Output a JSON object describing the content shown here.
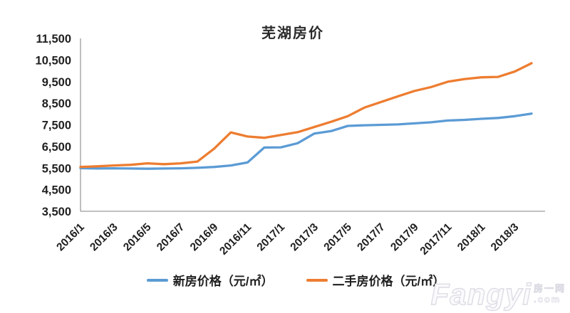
{
  "title": "芜湖房价",
  "legend": [
    {
      "label": "新房价格（元/㎡）",
      "color": "#5B9BD5"
    },
    {
      "label": "二手房价格（元/㎡）",
      "color": "#ED7D31"
    }
  ],
  "watermark": {
    "main": "Fangyi",
    "side_top": "房一网",
    "side_bottom": ".com"
  },
  "chart_data": {
    "type": "line",
    "title": "芜湖房价",
    "x": [
      "2016/1",
      "2016/2",
      "2016/3",
      "2016/4",
      "2016/5",
      "2016/6",
      "2016/7",
      "2016/8",
      "2016/9",
      "2016/10",
      "2016/11",
      "2016/12",
      "2017/1",
      "2017/2",
      "2017/3",
      "2017/4",
      "2017/5",
      "2017/6",
      "2017/7",
      "2017/8",
      "2017/9",
      "2017/10",
      "2017/11",
      "2017/12",
      "2018/1",
      "2018/2",
      "2018/3",
      "2018/4"
    ],
    "x_tick_labels": [
      "2016/1",
      "2016/3",
      "2016/5",
      "2016/7",
      "2016/9",
      "2016/11",
      "2017/1",
      "2017/3",
      "2017/5",
      "2017/7",
      "2017/9",
      "2017/11",
      "2018/1",
      "2018/3"
    ],
    "ylim": [
      3500,
      11500
    ],
    "yticks": [
      {
        "value": 11500,
        "label": "11,500"
      },
      {
        "value": 10500,
        "label": "10,500"
      },
      {
        "value": 9500,
        "label": "9,500"
      },
      {
        "value": 8500,
        "label": "8,500"
      },
      {
        "value": 7500,
        "label": "7,500"
      },
      {
        "value": 6500,
        "label": "6,500"
      },
      {
        "value": 5500,
        "label": "5,500"
      },
      {
        "value": 4500,
        "label": "4,500"
      },
      {
        "value": 3500,
        "label": "3,500"
      }
    ],
    "grid": false,
    "legend_position": "bottom",
    "axis_color": "#9b9b9b",
    "label_color": "#1f1f1f",
    "series": [
      {
        "key": "new-house-price",
        "name": "新房价格（元/㎡）",
        "color": "#5B9BD5",
        "values": [
          5500,
          5480,
          5490,
          5480,
          5470,
          5480,
          5490,
          5510,
          5550,
          5620,
          5760,
          6450,
          6460,
          6650,
          7100,
          7210,
          7450,
          7480,
          7500,
          7520,
          7570,
          7620,
          7700,
          7730,
          7780,
          7820,
          7900,
          8020
        ]
      },
      {
        "key": "second-hand-house-price",
        "name": "二手房价格（元/㎡）",
        "color": "#ED7D31",
        "values": [
          5550,
          5580,
          5620,
          5650,
          5720,
          5680,
          5720,
          5800,
          6400,
          7150,
          6960,
          6900,
          7030,
          7160,
          7400,
          7640,
          7900,
          8300,
          8560,
          8820,
          9070,
          9250,
          9500,
          9620,
          9700,
          9720,
          9970,
          10350
        ]
      }
    ]
  }
}
